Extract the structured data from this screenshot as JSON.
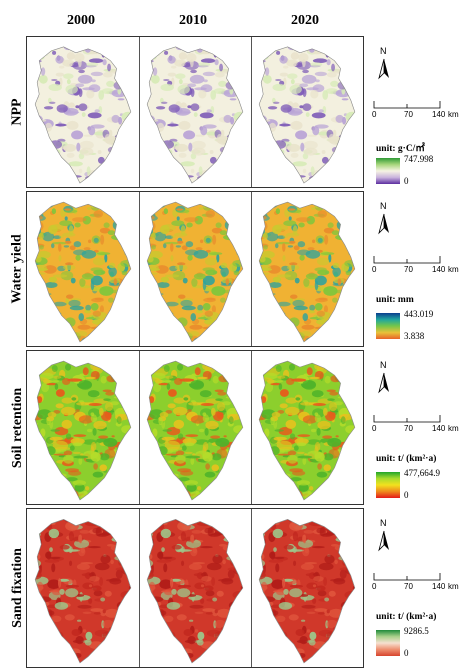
{
  "columns": [
    "2000",
    "2010",
    "2020"
  ],
  "rows": [
    {
      "label": "NPP",
      "unit": "unit:  g·C/㎡",
      "max": "747.998",
      "min": "0",
      "ramp": [
        "#2f9a36",
        "#a7d67c",
        "#f6f4e4",
        "#c9b3dd",
        "#5c2ea0"
      ],
      "palette": [
        "#f3f0df",
        "#e9e3cc",
        "#b9a4d6",
        "#7d5ab7",
        "#d6ebb6"
      ]
    },
    {
      "label": "Water yield",
      "unit": "unit:  mm",
      "max": "443.019",
      "min": "3.838",
      "ramp": [
        "#0b3e8f",
        "#1fa6a0",
        "#74c64a",
        "#e8c23a",
        "#e8632a"
      ],
      "palette": [
        "#f0b233",
        "#e88a2c",
        "#c9c92f",
        "#7fc63c",
        "#2aa3a0"
      ]
    },
    {
      "label": "Soil retention",
      "unit": "unit:  t/ (km²·a)",
      "max": "477,664.9",
      "min": "0",
      "ramp": [
        "#22a62a",
        "#a9dc2c",
        "#f2e11e",
        "#ef8a1d",
        "#e41a1a"
      ],
      "palette": [
        "#8ccf2d",
        "#b5dc2a",
        "#e5c21e",
        "#e85a1c",
        "#4fb32a"
      ]
    },
    {
      "label": "Sand fixation",
      "unit": "unit:  t/ (km²·a)",
      "max": "9286.5",
      "min": "0",
      "ramp": [
        "#1e8a3a",
        "#a8d08a",
        "#f6e0d0",
        "#ee8f70",
        "#d6442e"
      ],
      "palette": [
        "#d0382a",
        "#c2281f",
        "#e0553c",
        "#b01c18",
        "#9cc98c"
      ]
    }
  ],
  "north_label": "N",
  "scale": {
    "ticks": [
      "0",
      "70",
      "140"
    ],
    "unit": "km"
  }
}
